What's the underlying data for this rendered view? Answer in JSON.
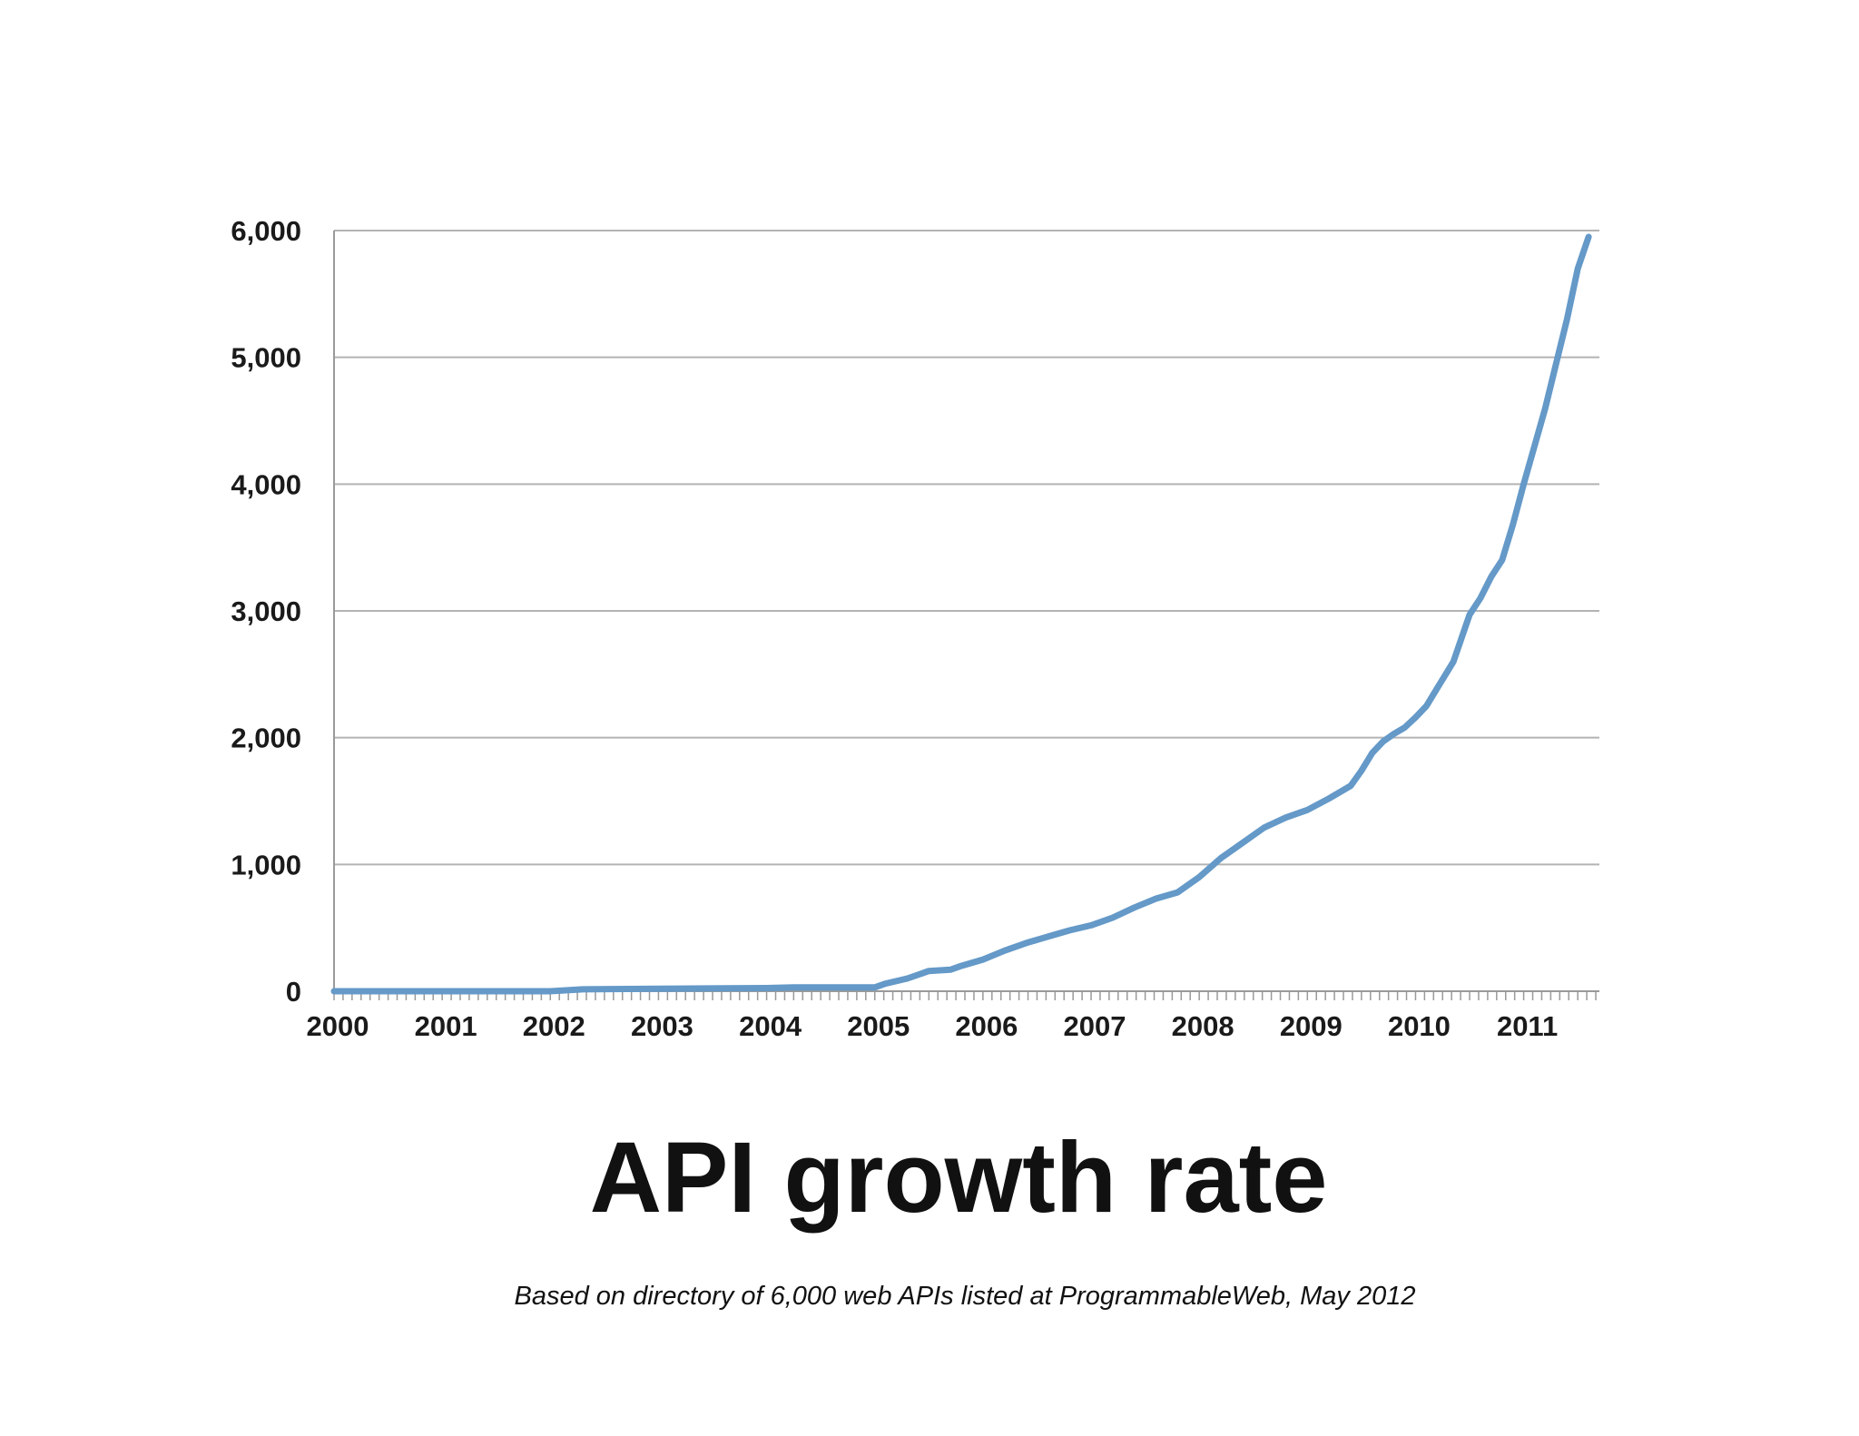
{
  "chart_data": {
    "type": "line",
    "title": "API growth rate",
    "subtitle": "Based on directory of 6,000 web APIs listed at ProgrammableWeb, May 2012",
    "xlabel": "",
    "ylabel": "",
    "xlim": [
      2000,
      2011.7
    ],
    "ylim": [
      0,
      6000
    ],
    "x_ticks": [
      2000,
      2001,
      2002,
      2003,
      2004,
      2005,
      2006,
      2007,
      2008,
      2009,
      2010,
      2011
    ],
    "x_tick_labels": [
      "2000",
      "2001",
      "2002",
      "2003",
      "2004",
      "2005",
      "2006",
      "2007",
      "2008",
      "2009",
      "2010",
      "2011"
    ],
    "y_ticks": [
      0,
      1000,
      2000,
      3000,
      4000,
      5000,
      6000
    ],
    "y_tick_labels": [
      "0",
      "1,000",
      "2,000",
      "3,000",
      "4,000",
      "5,000",
      "6,000"
    ],
    "grid": "horizontal",
    "legend": "none",
    "line_color": "#6499c8",
    "grid_color": "#b3b3b3",
    "series": [
      {
        "x": [
          2000.0,
          2001.0,
          2002.0,
          2002.3,
          2003.0,
          2004.0,
          2004.25,
          2004.5,
          2005.0,
          2005.1,
          2005.3,
          2005.5,
          2005.6,
          2005.7,
          2005.8,
          2006.0,
          2006.2,
          2006.4,
          2006.6,
          2006.8,
          2007.0,
          2007.2,
          2007.4,
          2007.6,
          2007.8,
          2008.0,
          2008.2,
          2008.4,
          2008.5,
          2008.6,
          2008.8,
          2009.0,
          2009.2,
          2009.4,
          2009.5,
          2009.6,
          2009.7,
          2009.8,
          2009.9,
          2010.0,
          2010.1,
          2010.2,
          2010.35,
          2010.5,
          2010.6,
          2010.7,
          2010.8,
          2010.9,
          2011.0,
          2011.1,
          2011.2,
          2011.3,
          2011.4,
          2011.5,
          2011.6
        ],
        "y": [
          0,
          0,
          0,
          15,
          20,
          25,
          30,
          30,
          30,
          60,
          100,
          160,
          165,
          170,
          200,
          250,
          320,
          380,
          430,
          480,
          520,
          580,
          660,
          730,
          780,
          900,
          1050,
          1170,
          1230,
          1290,
          1370,
          1430,
          1520,
          1620,
          1740,
          1880,
          1970,
          2030,
          2080,
          2160,
          2250,
          2390,
          2600,
          2970,
          3100,
          3270,
          3400,
          3680,
          4000,
          4300,
          4600,
          4950,
          5300,
          5700,
          5950
        ]
      }
    ]
  }
}
